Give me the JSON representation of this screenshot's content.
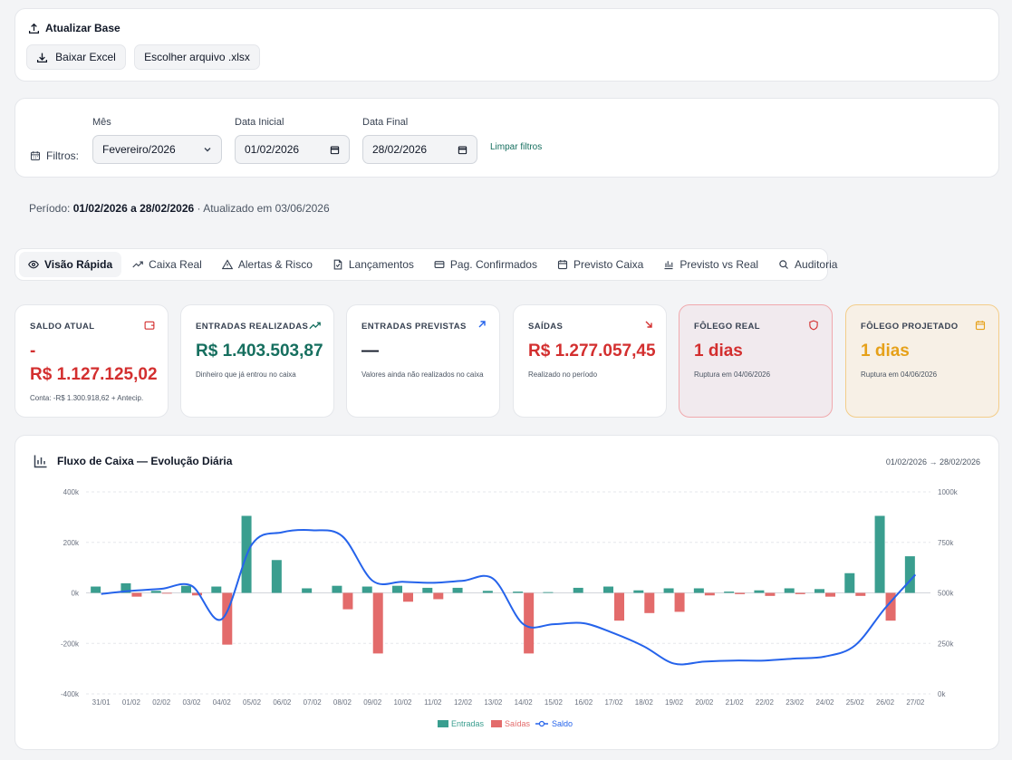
{
  "update": {
    "title": "Atualizar Base",
    "download_label": "Baixar Excel",
    "choose_label": "Escolher arquivo .xlsx"
  },
  "filters": {
    "label": "Filtros:",
    "month_label": "Mês",
    "month_value": "Fevereiro/2026",
    "start_label": "Data Inicial",
    "start_value": "01/02/2026",
    "end_label": "Data Final",
    "end_value": "28/02/2026",
    "clear_label": "Limpar filtros"
  },
  "period": {
    "prefix": "Período:",
    "range": "01/02/2026 a 28/02/2026",
    "updated": "· Atualizado em 03/06/2026"
  },
  "tabs": [
    {
      "label": "Visão Rápida",
      "icon": "eye-icon"
    },
    {
      "label": "Caixa Real",
      "icon": "trend-up-icon"
    },
    {
      "label": "Alertas & Risco",
      "icon": "warning-icon"
    },
    {
      "label": "Lançamentos",
      "icon": "file-icon"
    },
    {
      "label": "Pag. Confirmados",
      "icon": "card-icon"
    },
    {
      "label": "Previsto Caixa",
      "icon": "calendar-icon"
    },
    {
      "label": "Previsto vs Real",
      "icon": "bar-chart-icon"
    },
    {
      "label": "Auditoria",
      "icon": "search-icon"
    }
  ],
  "kpis": {
    "saldo": {
      "title": "SALDO ATUAL",
      "sign": "-",
      "value": "R$ 1.127.125,02",
      "sub": "Conta: -R$ 1.300.918,62 + Antecip."
    },
    "entradas": {
      "title": "ENTRADAS REALIZADAS",
      "value": "R$ 1.403.503,87",
      "sub": "Dinheiro que já entrou no caixa"
    },
    "previstas": {
      "title": "ENTRADAS PREVISTAS",
      "value": "—",
      "sub": "Valores ainda não realizados no caixa"
    },
    "saidas": {
      "title": "SAÍDAS",
      "value": "R$ 1.277.057,45",
      "sub": "Realizado no período"
    },
    "folego_real": {
      "title": "FÔLEGO REAL",
      "value": "1 dias",
      "sub": "Ruptura em 04/06/2026"
    },
    "folego_proj": {
      "title": "FÔLEGO PROJETADO",
      "value": "1 dias",
      "sub": "Ruptura em 04/06/2026"
    }
  },
  "colors": {
    "entradas": "#3a9e8f",
    "saidas": "#e36b6b",
    "saldo": "#2563eb",
    "green_text": "#166f5f",
    "red_text": "#d32f2f",
    "amber_text": "#e6a11a"
  },
  "chart": {
    "title": "Fluxo de Caixa — Evolução Diária",
    "range": "01/02/2026 → 28/02/2026"
  },
  "chart_data": {
    "type": "bar",
    "categories": [
      "31/01",
      "01/02",
      "02/02",
      "03/02",
      "04/02",
      "05/02",
      "06/02",
      "07/02",
      "08/02",
      "09/02",
      "10/02",
      "11/02",
      "12/02",
      "13/02",
      "14/02",
      "15/02",
      "16/02",
      "17/02",
      "18/02",
      "19/02",
      "20/02",
      "21/02",
      "22/02",
      "23/02",
      "24/02",
      "25/02",
      "26/02",
      "27/02"
    ],
    "series": [
      {
        "name": "Entradas",
        "axis": "left",
        "values": [
          25000,
          38000,
          8000,
          28000,
          25000,
          305000,
          130000,
          18000,
          28000,
          25000,
          28000,
          20000,
          20000,
          8000,
          5000,
          3000,
          20000,
          25000,
          10000,
          18000,
          18000,
          5000,
          10000,
          18000,
          15000,
          78000,
          305000,
          145000
        ]
      },
      {
        "name": "Saídas",
        "axis": "left",
        "values": [
          0,
          -15000,
          -3000,
          -10000,
          -205000,
          0,
          0,
          0,
          -65000,
          -240000,
          -35000,
          -25000,
          0,
          0,
          -240000,
          0,
          0,
          -110000,
          -80000,
          -75000,
          -10000,
          -5000,
          -12000,
          -5000,
          -15000,
          -12000,
          -110000,
          0
        ]
      },
      {
        "name": "Saldo",
        "axis": "right",
        "type": "line",
        "values": [
          495000,
          510000,
          520000,
          535000,
          370000,
          740000,
          800000,
          810000,
          780000,
          560000,
          555000,
          550000,
          560000,
          570000,
          345000,
          345000,
          350000,
          300000,
          235000,
          150000,
          160000,
          165000,
          165000,
          175000,
          185000,
          240000,
          425000,
          590000
        ]
      }
    ],
    "y_left": {
      "min": -400000,
      "max": 400000,
      "ticks": [
        "400k",
        "200k",
        "0k",
        "-200k",
        "-400k"
      ]
    },
    "y_right": {
      "min": 0,
      "max": 1000000,
      "ticks": [
        "1000k",
        "750k",
        "500k",
        "250k",
        "0k"
      ]
    },
    "grid": true,
    "legend": "bottom"
  }
}
